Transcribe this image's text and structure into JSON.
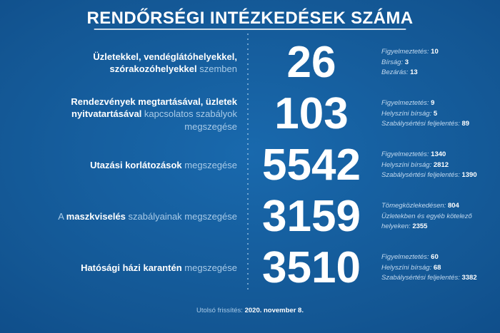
{
  "title": "RENDŐRSÉGI INTÉZKEDÉSEK SZÁMA",
  "footer": {
    "label": "Utolsó frissítés:",
    "value": "2020. november 8."
  },
  "colors": {
    "background_center": "#1969ad",
    "background_edge": "#0c4179",
    "text_primary": "#ffffff",
    "text_secondary": "#a9cbe8",
    "stat_label": "#c3daf0",
    "divider_dots": "#bedcf5"
  },
  "rows": [
    {
      "label_parts": [
        {
          "text": "Üzletekkel, vendéglátóhelyekkel, szórakozóhelyekkel",
          "bold": true
        },
        {
          "text": " szemben",
          "bold": false
        }
      ],
      "value": "26",
      "stats": [
        {
          "label": "Figyelmeztetés:",
          "value": "10"
        },
        {
          "label": "Bírság:",
          "value": "3"
        },
        {
          "label": "Bezárás:",
          "value": "13"
        }
      ]
    },
    {
      "label_parts": [
        {
          "text": "Rendezvények megtartásával, üzletek nyitvatartásával",
          "bold": true
        },
        {
          "text": " kapcsolatos szabályok megszegése",
          "bold": false
        }
      ],
      "value": "103",
      "stats": [
        {
          "label": "Figyelmeztetés:",
          "value": "9"
        },
        {
          "label": "Helyszíni bírság:",
          "value": "5"
        },
        {
          "label": "Szabálysértési feljelentés:",
          "value": "89"
        }
      ]
    },
    {
      "label_parts": [
        {
          "text": "Utazási korlátozások",
          "bold": true
        },
        {
          "text": " megszegése",
          "bold": false
        }
      ],
      "value": "5542",
      "stats": [
        {
          "label": "Figyelmeztetés:",
          "value": "1340"
        },
        {
          "label": "Helyszíni bírság:",
          "value": "2812"
        },
        {
          "label": "Szabálysértési feljelentés:",
          "value": "1390"
        }
      ]
    },
    {
      "label_parts": [
        {
          "text": "A ",
          "bold": false
        },
        {
          "text": "maszkviselés",
          "bold": true
        },
        {
          "text": " szabályainak megszegése",
          "bold": false
        }
      ],
      "value": "3159",
      "stats": [
        {
          "label": "Tömegközlekedésen:",
          "value": "804"
        },
        {
          "label": "Üzletekben és egyéb kötelező helyeken:",
          "value": "2355"
        }
      ]
    },
    {
      "label_parts": [
        {
          "text": "Hatósági házi karantén",
          "bold": true
        },
        {
          "text": " megszegése",
          "bold": false
        }
      ],
      "value": "3510",
      "stats": [
        {
          "label": "Figyelmeztetés:",
          "value": "60"
        },
        {
          "label": "Helyszíni bírság:",
          "value": "68"
        },
        {
          "label": "Szabálysértési feljelentés:",
          "value": "3382"
        }
      ]
    }
  ],
  "chart_data": {
    "type": "table",
    "title": "RENDŐRSÉGI INTÉZKEDÉSEK SZÁMA",
    "categories": [
      "Üzletekkel, vendéglátóhelyekkel, szórakozóhelyekkel szemben",
      "Rendezvények megtartásával, üzletek nyitvatartásával kapcsolatos szabályok megszegése",
      "Utazási korlátozások megszegése",
      "A maszkviselés szabályainak megszegése",
      "Hatósági házi karantén megszegése"
    ],
    "values": [
      26,
      103,
      5542,
      3159,
      3510
    ],
    "breakdowns": [
      {
        "Figyelmeztetés": 10,
        "Bírság": 3,
        "Bezárás": 13
      },
      {
        "Figyelmeztetés": 9,
        "Helyszíni bírság": 5,
        "Szabálysértési feljelentés": 89
      },
      {
        "Figyelmeztetés": 1340,
        "Helyszíni bírság": 2812,
        "Szabálysértési feljelentés": 1390
      },
      {
        "Tömegközlekedésen": 804,
        "Üzletekben és egyéb kötelező helyeken": 2355
      },
      {
        "Figyelmeztetés": 60,
        "Helyszíni bírság": 68,
        "Szabálysértési feljelentés": 3382
      }
    ],
    "note": "Utolsó frissítés: 2020. november 8.",
    "legend_position": "none",
    "grid": false
  }
}
